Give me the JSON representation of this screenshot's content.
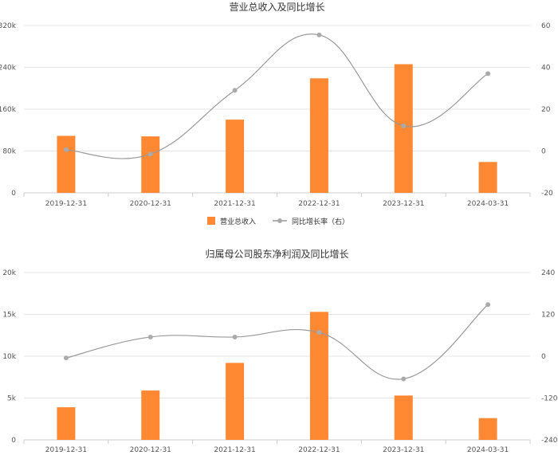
{
  "chart_data": [
    {
      "type": "bar",
      "title": "营业总收入及同比增长",
      "categories": [
        "2019-12-31",
        "2020-12-31",
        "2021-12-31",
        "2022-12-31",
        "2023-12-31",
        "2024-03-31"
      ],
      "series": [
        {
          "name": "营业总收入",
          "type": "bar",
          "axis": "left",
          "color": "#ff8833",
          "values": [
            109000,
            108000,
            140000,
            219000,
            246000,
            59000
          ]
        },
        {
          "name": "同比增长率（右）",
          "type": "line",
          "axis": "right",
          "color": "#999999",
          "values": [
            0.6,
            -1.5,
            29,
            55.5,
            12,
            37
          ]
        }
      ],
      "y_left": {
        "ticks": [
          "0",
          "80k",
          "160k",
          "240k",
          "320k"
        ],
        "min": 0,
        "max": 320000
      },
      "y_right": {
        "ticks": [
          "-20",
          "0",
          "20",
          "40",
          "60"
        ],
        "min": -20,
        "max": 60
      },
      "legend": {
        "position": "bottom",
        "items": [
          "营业总收入",
          "同比增长率（右）"
        ]
      },
      "grid": true
    },
    {
      "type": "bar",
      "title": "归属母公司股东净利润及同比增长",
      "categories": [
        "2019-12-31",
        "2020-12-31",
        "2021-12-31",
        "2022-12-31",
        "2023-12-31",
        "2024-03-31"
      ],
      "series": [
        {
          "name": "归属母公司股东净利润",
          "type": "bar",
          "axis": "left",
          "color": "#ff8833",
          "values": [
            3900,
            5900,
            9200,
            15300,
            5300,
            2600
          ]
        },
        {
          "name": "同比增长率",
          "type": "line",
          "axis": "right",
          "color": "#999999",
          "values": [
            -5,
            55,
            55,
            68,
            -65,
            148
          ]
        }
      ],
      "y_left": {
        "ticks": [
          "0",
          "5k",
          "10k",
          "15k",
          "20k"
        ],
        "min": 0,
        "max": 20000
      },
      "y_right": {
        "ticks": [
          "-240",
          "-120",
          "0",
          "120",
          "240"
        ],
        "min": -240,
        "max": 240
      },
      "grid": true
    }
  ]
}
